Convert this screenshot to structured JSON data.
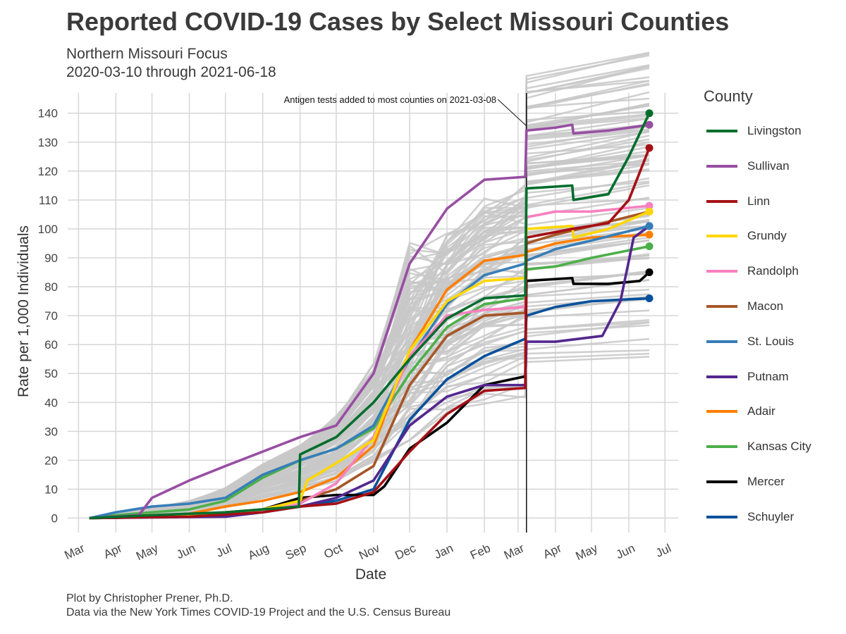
{
  "title": "Reported COVID-19 Cases by Select Missouri Counties",
  "subtitle_line1": "Northern Missouri Focus",
  "subtitle_line2": "2020-03-10 through 2021-06-18",
  "caption_line1": "Plot by Christopher Prener, Ph.D.",
  "caption_line2": "Data via the New York Times COVID-19 Project and the U.S. Census Bureau",
  "legend_title": "County",
  "annotation": "Antigen tests added to most counties on 2021-03-08",
  "chart_data": {
    "type": "line",
    "title": "Reported COVID-19 Cases by Select Missouri Counties",
    "xlabel": "Date",
    "ylabel": "Rate per 1,000 Individuals",
    "x_ticks": [
      "Mar",
      "Apr",
      "May",
      "Jun",
      "Jul",
      "Aug",
      "Sep",
      "Oct",
      "Nov",
      "Dec",
      "Jan",
      "Feb",
      "Mar",
      "Apr",
      "May",
      "Jun",
      "Jul"
    ],
    "x_tick_dates": [
      "2020-03-01",
      "2020-04-01",
      "2020-05-01",
      "2020-06-01",
      "2020-07-01",
      "2020-08-01",
      "2020-09-01",
      "2020-10-01",
      "2020-11-01",
      "2020-12-01",
      "2021-01-01",
      "2021-02-01",
      "2021-03-01",
      "2021-04-01",
      "2021-05-01",
      "2021-06-01",
      "2021-07-01"
    ],
    "ylim": [
      -5,
      147
    ],
    "y_ticks": [
      0,
      10,
      20,
      30,
      40,
      50,
      60,
      70,
      80,
      90,
      100,
      110,
      120,
      130,
      140
    ],
    "vline_date": "2021-03-08",
    "grid": true,
    "legend_position": "right",
    "background_series_color": "#c8c8c8",
    "background_series_count": 100,
    "series": [
      {
        "name": "Livingston",
        "color": "#006d2c",
        "points": [
          [
            "2020-03-10",
            0
          ],
          [
            "2020-05-01",
            1
          ],
          [
            "2020-07-01",
            2
          ],
          [
            "2020-08-31",
            4
          ],
          [
            "2020-09-01",
            22
          ],
          [
            "2020-10-01",
            28
          ],
          [
            "2020-11-01",
            40
          ],
          [
            "2020-12-01",
            55
          ],
          [
            "2021-01-01",
            69
          ],
          [
            "2021-02-01",
            76
          ],
          [
            "2021-03-07",
            77
          ],
          [
            "2021-03-08",
            114
          ],
          [
            "2021-04-15",
            115
          ],
          [
            "2021-04-16",
            110
          ],
          [
            "2021-05-15",
            112
          ],
          [
            "2021-06-01",
            125
          ],
          [
            "2021-06-18",
            140
          ]
        ]
      },
      {
        "name": "Sullivan",
        "color": "#984ea3",
        "points": [
          [
            "2020-03-10",
            0
          ],
          [
            "2020-04-20",
            1
          ],
          [
            "2020-05-01",
            7
          ],
          [
            "2020-06-01",
            13
          ],
          [
            "2020-07-01",
            18
          ],
          [
            "2020-08-01",
            23
          ],
          [
            "2020-09-01",
            28
          ],
          [
            "2020-10-01",
            32
          ],
          [
            "2020-11-01",
            50
          ],
          [
            "2020-12-01",
            88
          ],
          [
            "2021-01-01",
            107
          ],
          [
            "2021-02-01",
            117
          ],
          [
            "2021-03-07",
            118
          ],
          [
            "2021-03-08",
            134
          ],
          [
            "2021-04-01",
            135
          ],
          [
            "2021-04-15",
            136
          ],
          [
            "2021-04-16",
            133
          ],
          [
            "2021-05-15",
            134
          ],
          [
            "2021-06-18",
            136
          ]
        ]
      },
      {
        "name": "Linn",
        "color": "#a50f15",
        "points": [
          [
            "2020-03-10",
            0
          ],
          [
            "2020-06-01",
            0.5
          ],
          [
            "2020-08-01",
            2
          ],
          [
            "2020-09-01",
            4
          ],
          [
            "2020-10-01",
            5
          ],
          [
            "2020-11-01",
            9
          ],
          [
            "2020-12-01",
            23
          ],
          [
            "2021-01-01",
            36
          ],
          [
            "2021-02-01",
            44
          ],
          [
            "2021-03-07",
            45
          ],
          [
            "2021-03-08",
            97
          ],
          [
            "2021-04-15",
            100
          ],
          [
            "2021-05-15",
            102
          ],
          [
            "2021-06-01",
            110
          ],
          [
            "2021-06-18",
            128
          ]
        ]
      },
      {
        "name": "Grundy",
        "color": "#ffd700",
        "points": [
          [
            "2020-03-10",
            0
          ],
          [
            "2020-06-01",
            1
          ],
          [
            "2020-08-01",
            3
          ],
          [
            "2020-09-01",
            6
          ],
          [
            "2020-09-07",
            13
          ],
          [
            "2020-10-01",
            19
          ],
          [
            "2020-11-01",
            27
          ],
          [
            "2020-12-01",
            58
          ],
          [
            "2021-01-01",
            75
          ],
          [
            "2021-02-01",
            82
          ],
          [
            "2021-03-07",
            83
          ],
          [
            "2021-03-08",
            100
          ],
          [
            "2021-04-15",
            101
          ],
          [
            "2021-04-16",
            97
          ],
          [
            "2021-05-15",
            100
          ],
          [
            "2021-06-18",
            106
          ]
        ]
      },
      {
        "name": "Randolph",
        "color": "#f781bf",
        "points": [
          [
            "2020-03-10",
            0
          ],
          [
            "2020-06-01",
            1
          ],
          [
            "2020-08-01",
            2
          ],
          [
            "2020-09-01",
            5
          ],
          [
            "2020-10-01",
            12
          ],
          [
            "2020-11-01",
            28
          ],
          [
            "2020-12-01",
            56
          ],
          [
            "2021-01-01",
            70
          ],
          [
            "2021-02-01",
            72
          ],
          [
            "2021-03-07",
            73
          ],
          [
            "2021-03-08",
            104
          ],
          [
            "2021-04-01",
            106
          ],
          [
            "2021-05-01",
            106
          ],
          [
            "2021-06-18",
            108
          ]
        ]
      },
      {
        "name": "Macon",
        "color": "#a65628",
        "points": [
          [
            "2020-03-10",
            0
          ],
          [
            "2020-06-01",
            1
          ],
          [
            "2020-08-01",
            3
          ],
          [
            "2020-09-01",
            6
          ],
          [
            "2020-10-01",
            10
          ],
          [
            "2020-11-01",
            18
          ],
          [
            "2020-12-01",
            46
          ],
          [
            "2021-01-01",
            63
          ],
          [
            "2021-02-01",
            70
          ],
          [
            "2021-03-07",
            71
          ],
          [
            "2021-03-08",
            95
          ],
          [
            "2021-04-01",
            98
          ],
          [
            "2021-05-01",
            101
          ],
          [
            "2021-06-18",
            106
          ]
        ]
      },
      {
        "name": "St. Louis",
        "color": "#377eb8",
        "points": [
          [
            "2020-03-10",
            0
          ],
          [
            "2020-04-01",
            2
          ],
          [
            "2020-05-01",
            4
          ],
          [
            "2020-06-01",
            5
          ],
          [
            "2020-07-01",
            7
          ],
          [
            "2020-08-01",
            15
          ],
          [
            "2020-09-01",
            20
          ],
          [
            "2020-10-01",
            24
          ],
          [
            "2020-11-01",
            32
          ],
          [
            "2020-12-01",
            55
          ],
          [
            "2021-01-01",
            74
          ],
          [
            "2021-02-01",
            84
          ],
          [
            "2021-03-07",
            88
          ],
          [
            "2021-03-08",
            89
          ],
          [
            "2021-04-01",
            93
          ],
          [
            "2021-05-01",
            96
          ],
          [
            "2021-06-18",
            101
          ]
        ]
      },
      {
        "name": "Putnam",
        "color": "#54278f",
        "points": [
          [
            "2020-03-10",
            0
          ],
          [
            "2020-07-01",
            0.5
          ],
          [
            "2020-08-01",
            2
          ],
          [
            "2020-09-01",
            4
          ],
          [
            "2020-10-01",
            7
          ],
          [
            "2020-11-01",
            13
          ],
          [
            "2020-12-01",
            32
          ],
          [
            "2021-01-01",
            42
          ],
          [
            "2021-02-01",
            46
          ],
          [
            "2021-03-07",
            46
          ],
          [
            "2021-03-08",
            61
          ],
          [
            "2021-04-01",
            61
          ],
          [
            "2021-05-10",
            63
          ],
          [
            "2021-05-25",
            75
          ],
          [
            "2021-06-05",
            97
          ],
          [
            "2021-06-18",
            101
          ]
        ]
      },
      {
        "name": "Adair",
        "color": "#ff7f00",
        "points": [
          [
            "2020-03-10",
            0
          ],
          [
            "2020-04-01",
            0.5
          ],
          [
            "2020-06-01",
            1.5
          ],
          [
            "2020-07-01",
            4
          ],
          [
            "2020-08-01",
            6
          ],
          [
            "2020-09-01",
            9
          ],
          [
            "2020-10-01",
            14
          ],
          [
            "2020-11-01",
            25
          ],
          [
            "2020-12-01",
            58
          ],
          [
            "2021-01-01",
            79
          ],
          [
            "2021-02-01",
            89
          ],
          [
            "2021-03-07",
            91
          ],
          [
            "2021-03-08",
            92
          ],
          [
            "2021-04-01",
            95
          ],
          [
            "2021-05-01",
            97
          ],
          [
            "2021-06-18",
            98
          ]
        ]
      },
      {
        "name": "Kansas City",
        "color": "#4daf4a",
        "points": [
          [
            "2020-03-10",
            0
          ],
          [
            "2020-04-01",
            1
          ],
          [
            "2020-05-01",
            2
          ],
          [
            "2020-06-01",
            3
          ],
          [
            "2020-07-01",
            6
          ],
          [
            "2020-08-01",
            14
          ],
          [
            "2020-09-01",
            20
          ],
          [
            "2020-10-01",
            24
          ],
          [
            "2020-11-01",
            31
          ],
          [
            "2020-12-01",
            50
          ],
          [
            "2021-01-01",
            66
          ],
          [
            "2021-02-01",
            74
          ],
          [
            "2021-03-07",
            76
          ],
          [
            "2021-03-08",
            86
          ],
          [
            "2021-04-01",
            87
          ],
          [
            "2021-05-01",
            90
          ],
          [
            "2021-06-18",
            94
          ]
        ]
      },
      {
        "name": "Mercer",
        "color": "#000000",
        "points": [
          [
            "2020-03-10",
            0
          ],
          [
            "2020-06-01",
            1
          ],
          [
            "2020-08-01",
            3
          ],
          [
            "2020-09-01",
            7
          ],
          [
            "2020-10-01",
            8
          ],
          [
            "2020-11-01",
            8
          ],
          [
            "2020-11-10",
            11
          ],
          [
            "2020-12-01",
            24
          ],
          [
            "2021-01-01",
            33
          ],
          [
            "2021-02-01",
            46
          ],
          [
            "2021-03-07",
            49
          ],
          [
            "2021-03-08",
            82
          ],
          [
            "2021-04-15",
            83
          ],
          [
            "2021-04-16",
            81
          ],
          [
            "2021-05-15",
            81
          ],
          [
            "2021-06-10",
            82
          ],
          [
            "2021-06-18",
            85
          ]
        ]
      },
      {
        "name": "Schuyler",
        "color": "#08519c",
        "points": [
          [
            "2020-03-10",
            0
          ],
          [
            "2020-06-01",
            0.5
          ],
          [
            "2020-08-01",
            2
          ],
          [
            "2020-09-01",
            4
          ],
          [
            "2020-10-01",
            6
          ],
          [
            "2020-11-01",
            10
          ],
          [
            "2020-12-01",
            34
          ],
          [
            "2021-01-01",
            48
          ],
          [
            "2021-02-01",
            56
          ],
          [
            "2021-03-07",
            62
          ],
          [
            "2021-03-08",
            70
          ],
          [
            "2021-04-01",
            73
          ],
          [
            "2021-05-01",
            75
          ],
          [
            "2021-06-18",
            76
          ]
        ]
      }
    ]
  }
}
